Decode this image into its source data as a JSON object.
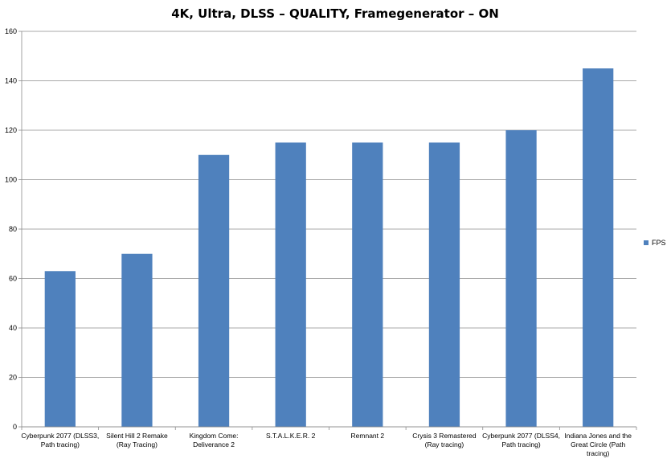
{
  "chart_data": {
    "type": "bar",
    "title": "4K, Ultra, DLSS – QUALITY, Framegenerator – ON",
    "categories": [
      [
        "Cyberpunk 2077 (DLSS3,",
        "Path tracing)"
      ],
      [
        "Silent Hill 2 Remake",
        "(Ray Tracing)"
      ],
      [
        "Kingdom Come:",
        "Deliverance 2"
      ],
      [
        "S.T.A.L.K.E.R. 2"
      ],
      [
        "Remnant 2"
      ],
      [
        "Crysis 3 Remastered",
        "(Ray tracing)"
      ],
      [
        "Cyberpunk 2077 (DLSS4,",
        "Path tracing)"
      ],
      [
        "Indiana Jones and the",
        "Great Circle (Path",
        "tracing)"
      ]
    ],
    "series": [
      {
        "name": "FPS",
        "values": [
          63,
          70,
          110,
          115,
          115,
          115,
          120,
          145
        ],
        "color": "#4f81bd"
      }
    ],
    "xlabel": "",
    "ylabel": "",
    "ylim": [
      0,
      160
    ],
    "yticks": [
      0,
      20,
      40,
      60,
      80,
      100,
      120,
      140,
      160
    ],
    "grid": true,
    "legend": "right"
  }
}
